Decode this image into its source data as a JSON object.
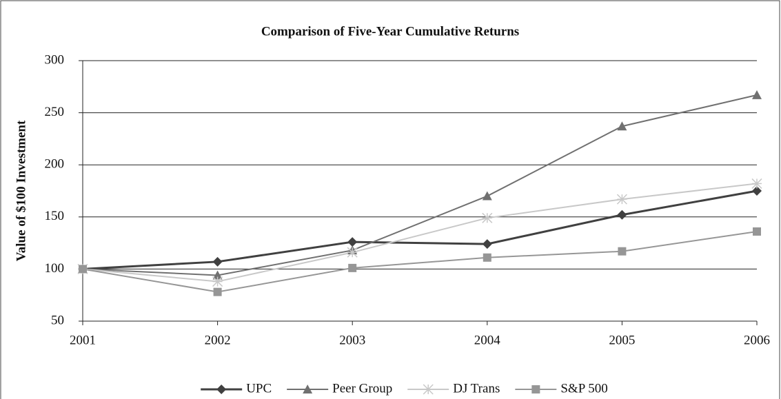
{
  "chart_data": {
    "type": "line",
    "title": "Comparison of Five-Year Cumulative Returns",
    "y_label": "Value of $100 Investment",
    "categories": [
      "2001",
      "2002",
      "2003",
      "2004",
      "2005",
      "2006"
    ],
    "series": [
      {
        "name": "UPC",
        "color": "#404040",
        "marker": "diamond",
        "values": [
          100,
          107,
          126,
          124,
          152,
          175
        ]
      },
      {
        "name": "Peer Group",
        "color": "#707070",
        "marker": "triangle",
        "values": [
          100,
          94,
          118,
          170,
          237,
          267
        ]
      },
      {
        "name": "DJ Trans",
        "color": "#c8c8c8",
        "marker": "asterisk",
        "values": [
          100,
          88,
          116,
          149,
          167,
          182
        ]
      },
      {
        "name": "S&P 500",
        "color": "#969696",
        "marker": "square",
        "values": [
          100,
          78,
          101,
          111,
          117,
          136
        ]
      }
    ],
    "ylim": [
      50,
      300
    ],
    "yticks": [
      50,
      100,
      150,
      200,
      250,
      300
    ],
    "grid": true,
    "legend": "bottom"
  }
}
